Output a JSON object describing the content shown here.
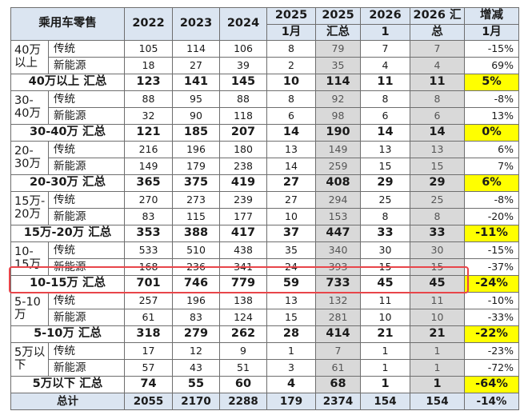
{
  "header": {
    "category": "乘用车零售",
    "y2022": "2022",
    "y2023": "2023",
    "y2024": "2024",
    "y2025": "2025",
    "y2025_month": "1月",
    "y2025b": "2025",
    "y2025b_sub": "汇总",
    "y2026": "2026",
    "y2026_month": "1",
    "y2026sum": "2026 汇",
    "y2026sum_sub": "总",
    "change": "增减",
    "change_month": "1月"
  },
  "groups": [
    {
      "name_line1": "40万",
      "name_line2": "以上",
      "rows": [
        {
          "label": "传统",
          "values": [
            "105",
            "114",
            "106",
            "8",
            "79",
            "7",
            "7",
            "-15%"
          ]
        },
        {
          "label": "新能源",
          "values": [
            "18",
            "27",
            "39",
            "2",
            "35",
            "4",
            "4",
            "69%"
          ]
        }
      ],
      "total": {
        "label": "40万以上 汇总",
        "values": [
          "123",
          "141",
          "145",
          "10",
          "114",
          "11",
          "11",
          "5%"
        ]
      }
    },
    {
      "name_line1": "30-",
      "name_line2": "40万",
      "rows": [
        {
          "label": "传统",
          "values": [
            "88",
            "95",
            "88",
            "8",
            "92",
            "8",
            "8",
            "-8%"
          ]
        },
        {
          "label": "新能源",
          "values": [
            "32",
            "90",
            "118",
            "6",
            "98",
            "6",
            "6",
            "13%"
          ]
        }
      ],
      "total": {
        "label": "30-40万 汇总",
        "values": [
          "121",
          "185",
          "207",
          "14",
          "190",
          "14",
          "14",
          "0%"
        ]
      }
    },
    {
      "name_line1": "20-",
      "name_line2": "30万",
      "rows": [
        {
          "label": "传统",
          "values": [
            "216",
            "196",
            "180",
            "13",
            "149",
            "13",
            "13",
            "6%"
          ]
        },
        {
          "label": "新能源",
          "values": [
            "149",
            "179",
            "238",
            "14",
            "259",
            "15",
            "15",
            "7%"
          ]
        }
      ],
      "total": {
        "label": "20-30万 汇总",
        "values": [
          "365",
          "375",
          "419",
          "27",
          "408",
          "29",
          "29",
          "6%"
        ]
      }
    },
    {
      "name_line1": "15万-",
      "name_line2": "20万",
      "rows": [
        {
          "label": "传统",
          "values": [
            "270",
            "273",
            "239",
            "27",
            "294",
            "25",
            "25",
            "-8%"
          ]
        },
        {
          "label": "新能源",
          "values": [
            "83",
            "115",
            "177",
            "10",
            "153",
            "8",
            "8",
            "-20%"
          ]
        }
      ],
      "total": {
        "label": "15万-20万 汇总",
        "values": [
          "353",
          "388",
          "417",
          "37",
          "447",
          "33",
          "33",
          "-11%"
        ]
      }
    },
    {
      "name_line1": "10-",
      "name_line2": "15万",
      "rows": [
        {
          "label": "传统",
          "values": [
            "533",
            "510",
            "438",
            "35",
            "340",
            "30",
            "30",
            "-15%"
          ]
        },
        {
          "label": "新能源",
          "values": [
            "168",
            "236",
            "341",
            "24",
            "393",
            "15",
            "15",
            "-37%"
          ]
        }
      ],
      "total": {
        "label": "10-15万 汇总",
        "values": [
          "701",
          "746",
          "779",
          "59",
          "733",
          "45",
          "45",
          "-24%"
        ]
      }
    },
    {
      "name_line1": "5-10",
      "name_line2": "万",
      "rows": [
        {
          "label": "传统",
          "values": [
            "257",
            "196",
            "138",
            "13",
            "132",
            "11",
            "11",
            "-10%"
          ]
        },
        {
          "label": "新能源",
          "values": [
            "61",
            "83",
            "124",
            "15",
            "281",
            "10",
            "10",
            "-33%"
          ]
        }
      ],
      "total": {
        "label": "5-10万 汇总",
        "values": [
          "318",
          "279",
          "262",
          "28",
          "414",
          "21",
          "21",
          "-22%"
        ]
      }
    },
    {
      "name_line1": "5万以",
      "name_line2": "下",
      "rows": [
        {
          "label": "传统",
          "values": [
            "17",
            "12",
            "9",
            "1",
            "7",
            "1",
            "1",
            "-23%"
          ]
        },
        {
          "label": "新能源",
          "values": [
            "57",
            "43",
            "51",
            "3",
            "61",
            "1",
            "1",
            "-72%"
          ]
        }
      ],
      "total": {
        "label": "5万以下 汇总",
        "values": [
          "74",
          "55",
          "60",
          "4",
          "68",
          "1",
          "1",
          "-64%"
        ]
      }
    }
  ],
  "grand_total": {
    "label": "总计",
    "values": [
      "2055",
      "2170",
      "2288",
      "179",
      "2374",
      "154",
      "154",
      "-14%"
    ]
  },
  "colors": {
    "header_bg": "#dbe5f1",
    "summary_col_bg": "#d9d9d9",
    "change_highlight": "#ffff00",
    "selection_outline": "#e8454a"
  }
}
